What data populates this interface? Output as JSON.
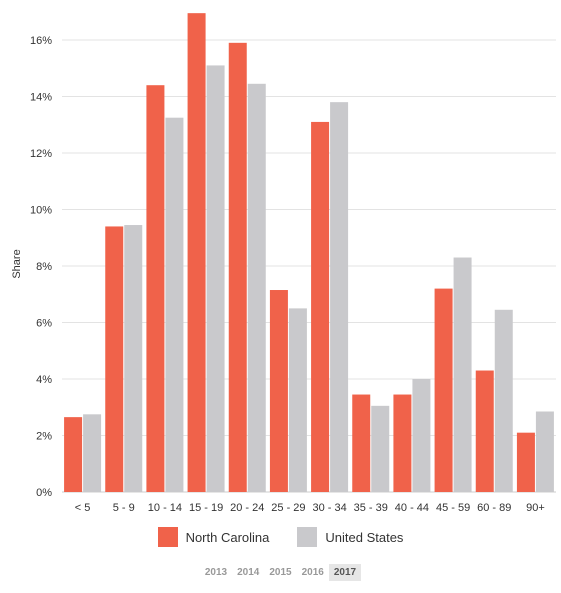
{
  "chart_data": {
    "type": "bar",
    "ylabel": "Share",
    "ylim": [
      0,
      16
    ],
    "yticks": [
      0,
      2,
      4,
      6,
      8,
      10,
      12,
      14,
      16
    ],
    "ytick_labels": [
      "0%",
      "2%",
      "4%",
      "6%",
      "8%",
      "10%",
      "12%",
      "14%",
      "16%"
    ],
    "grid": true,
    "categories": [
      "< 5",
      "5 - 9",
      "10 - 14",
      "15 - 19",
      "20 - 24",
      "25 - 29",
      "30 - 34",
      "35 - 39",
      "40 - 44",
      "45 - 59",
      "60 - 89",
      "90+"
    ],
    "series": [
      {
        "name": "North Carolina",
        "color": "#f0624a",
        "values": [
          2.65,
          9.4,
          14.4,
          16.95,
          15.9,
          7.15,
          13.1,
          3.45,
          3.45,
          7.2,
          4.3,
          2.1
        ]
      },
      {
        "name": "United States",
        "color": "#c9c9cc",
        "values": [
          2.75,
          9.45,
          13.25,
          15.1,
          14.45,
          6.5,
          13.8,
          3.05,
          4.0,
          8.3,
          6.45,
          2.85
        ]
      }
    ]
  },
  "years": [
    "2013",
    "2014",
    "2015",
    "2016",
    "2017"
  ],
  "active_year": "2017"
}
